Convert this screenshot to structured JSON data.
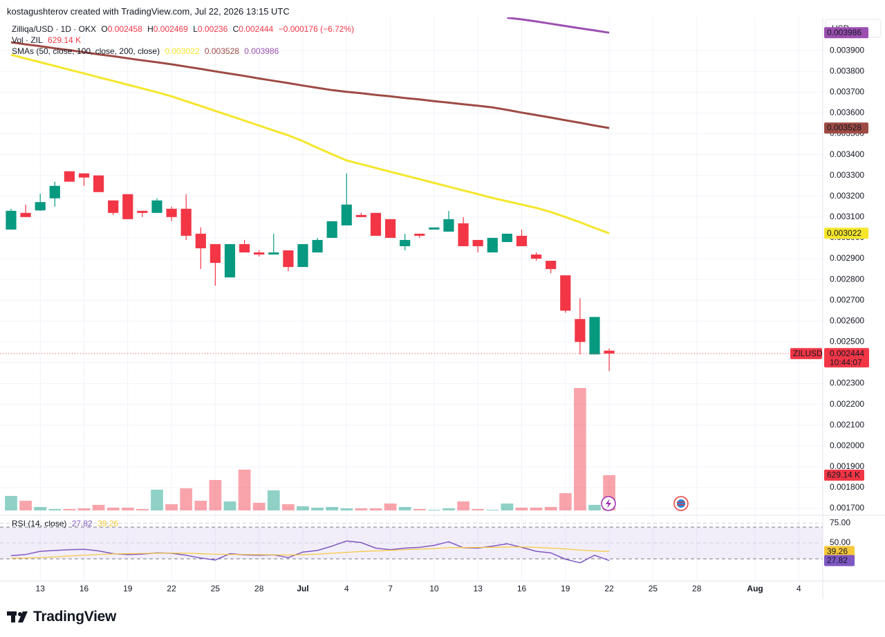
{
  "header": {
    "attribution": "kostagushterov created with TradingView.com, Jul 22, 2026 13:15 UTC"
  },
  "chart_data": {
    "type": "candlestick",
    "symbol": "Zilliqa/USD · 1D · OKX",
    "ohlc_labels": [
      "O",
      "H",
      "L",
      "C"
    ],
    "change": "−0.000176 (−6.72%)",
    "currency": "USD",
    "last_price_label": "ZILUSD",
    "countdown": "10:44:07",
    "up_color": "#089981",
    "down_color": "#f23645",
    "x": [
      "2026-06-11",
      "2026-06-12",
      "2026-06-13",
      "2026-06-14",
      "2026-06-15",
      "2026-06-16",
      "2026-06-17",
      "2026-06-18",
      "2026-06-19",
      "2026-06-20",
      "2026-06-21",
      "2026-06-22",
      "2026-06-23",
      "2026-06-24",
      "2026-06-25",
      "2026-06-26",
      "2026-06-27",
      "2026-06-28",
      "2026-06-29",
      "2026-06-30",
      "2026-07-01",
      "2026-07-02",
      "2026-07-03",
      "2026-07-04",
      "2026-07-05",
      "2026-07-06",
      "2026-07-07",
      "2026-07-08",
      "2026-07-09",
      "2026-07-10",
      "2026-07-11",
      "2026-07-12",
      "2026-07-13",
      "2026-07-14",
      "2026-07-15",
      "2026-07-16",
      "2026-07-17",
      "2026-07-18",
      "2026-07-19",
      "2026-07-20",
      "2026-07-21",
      "2026-07-22"
    ],
    "open": [
      0.00304,
      0.00312,
      0.003132,
      0.00319,
      0.00332,
      0.00331,
      0.0033,
      0.00318,
      0.00321,
      0.00313,
      0.00312,
      0.00314,
      0.00314,
      0.00302,
      0.00297,
      0.00281,
      0.00297,
      0.00293,
      0.00292,
      0.00294,
      0.00286,
      0.00293,
      0.003,
      0.00306,
      0.00311,
      0.00312,
      0.00309,
      0.00296,
      0.00302,
      0.00304,
      0.00303,
      0.00307,
      0.00299,
      0.00293,
      0.00298,
      0.00301,
      0.00292,
      0.00289,
      0.00282,
      0.00261,
      0.00244,
      0.002458
    ],
    "high": [
      0.00314,
      0.00316,
      0.003212,
      0.00327,
      0.00332,
      0.00331,
      0.0033,
      0.00318,
      0.00321,
      0.00313,
      0.00319,
      0.00315,
      0.00321,
      0.00305,
      0.00297,
      0.00297,
      0.00299,
      0.00294,
      0.00302,
      0.00294,
      0.00297,
      0.003,
      0.00308,
      0.00331,
      0.00312,
      0.00312,
      0.00309,
      0.00302,
      0.00302,
      0.00305,
      0.00313,
      0.0031,
      0.00299,
      0.003,
      0.00302,
      0.00304,
      0.00293,
      0.00289,
      0.00282,
      0.00271,
      0.00262,
      0.002469
    ],
    "low": [
      0.00304,
      0.0031,
      0.00313,
      0.00315,
      0.00327,
      0.00325,
      0.00322,
      0.00311,
      0.00309,
      0.0031,
      0.00312,
      0.00308,
      0.00299,
      0.00285,
      0.00277,
      0.00281,
      0.00293,
      0.00291,
      0.00292,
      0.00284,
      0.00286,
      0.00293,
      0.003,
      0.00306,
      0.0031,
      0.00301,
      0.003,
      0.00294,
      0.003,
      0.00304,
      0.00303,
      0.00296,
      0.00293,
      0.00293,
      0.00298,
      0.00296,
      0.00289,
      0.00283,
      0.00264,
      0.00244,
      0.00244,
      0.00236
    ],
    "close": [
      0.00313,
      0.0031,
      0.003172,
      0.00325,
      0.00327,
      0.00329,
      0.00322,
      0.00312,
      0.00309,
      0.00312,
      0.00318,
      0.0031,
      0.00301,
      0.00295,
      0.00288,
      0.00297,
      0.00293,
      0.00292,
      0.00293,
      0.00286,
      0.00297,
      0.00299,
      0.00308,
      0.00316,
      0.0031,
      0.00301,
      0.003,
      0.00299,
      0.00301,
      0.00305,
      0.00309,
      0.00296,
      0.00296,
      0.003,
      0.00302,
      0.00296,
      0.0029,
      0.00285,
      0.00265,
      0.0025,
      0.00262,
      0.002444
    ],
    "ylim": [
      0.001667,
      0.00406
    ],
    "yticks": [
      {
        "value": 0.0039,
        "label": "0.003900"
      },
      {
        "value": 0.0038,
        "label": "0.003800"
      },
      {
        "value": 0.0037,
        "label": "0.003700"
      },
      {
        "value": 0.0036,
        "label": "0.003600"
      },
      {
        "value": 0.0035,
        "label": "0.003500"
      },
      {
        "value": 0.0034,
        "label": "0.003400"
      },
      {
        "value": 0.0033,
        "label": "0.003300"
      },
      {
        "value": 0.0032,
        "label": "0.003200"
      },
      {
        "value": 0.0031,
        "label": "0.003100"
      },
      {
        "value": 0.003,
        "label": "0.003000"
      },
      {
        "value": 0.0029,
        "label": "0.002900"
      },
      {
        "value": 0.0028,
        "label": "0.002800"
      },
      {
        "value": 0.0027,
        "label": "0.002700"
      },
      {
        "value": 0.0026,
        "label": "0.002600"
      },
      {
        "value": 0.0025,
        "label": "0.002500"
      },
      {
        "value": 0.0024,
        "label": "0.002400"
      },
      {
        "value": 0.0023,
        "label": "0.002300"
      },
      {
        "value": 0.0022,
        "label": "0.002200"
      },
      {
        "value": 0.0021,
        "label": "0.002100"
      },
      {
        "value": 0.002,
        "label": "0.002000"
      },
      {
        "value": 0.0019,
        "label": "0.001900"
      },
      {
        "value": 0.0018,
        "label": "0.001800"
      },
      {
        "value": 0.0017,
        "label": "0.001700"
      }
    ],
    "xlim": [
      "2026-06-10",
      "2026-08-06"
    ],
    "xticks": [
      {
        "value": "2026-06-13",
        "label": "13"
      },
      {
        "value": "2026-06-16",
        "label": "16"
      },
      {
        "value": "2026-06-19",
        "label": "19"
      },
      {
        "value": "2026-06-22",
        "label": "22"
      },
      {
        "value": "2026-06-25",
        "label": "25"
      },
      {
        "value": "2026-06-28",
        "label": "28"
      },
      {
        "value": "2026-07-01",
        "label": "Jul"
      },
      {
        "value": "2026-07-04",
        "label": "4"
      },
      {
        "value": "2026-07-07",
        "label": "7"
      },
      {
        "value": "2026-07-10",
        "label": "10"
      },
      {
        "value": "2026-07-13",
        "label": "13"
      },
      {
        "value": "2026-07-16",
        "label": "16"
      },
      {
        "value": "2026-07-19",
        "label": "19"
      },
      {
        "value": "2026-07-22",
        "label": "22"
      },
      {
        "value": "2026-07-25",
        "label": "25"
      },
      {
        "value": "2026-07-28",
        "label": "28"
      },
      {
        "value": "2026-08-01",
        "label": "Aug"
      },
      {
        "value": "2026-08-04",
        "label": "4"
      }
    ],
    "grid": true,
    "volume": {
      "name": "Vol · ZIL",
      "values": [
        259000,
        173000,
        62000,
        25000,
        25000,
        37000,
        99000,
        49000,
        49000,
        25000,
        370000,
        111000,
        395000,
        173000,
        543000,
        160000,
        728000,
        136000,
        358000,
        111000,
        74000,
        49000,
        62000,
        37000,
        37000,
        37000,
        123000,
        62000,
        25000,
        12000,
        37000,
        160000,
        25000,
        12000,
        123000,
        49000,
        49000,
        62000,
        308000,
        2184000,
        99000,
        629140
      ],
      "value_labels": [
        null,
        null,
        null,
        null,
        null,
        null,
        null,
        null,
        null,
        null,
        null,
        null,
        null,
        null,
        null,
        null,
        null,
        null,
        null,
        null,
        null,
        null,
        null,
        null,
        null,
        null,
        null,
        null,
        null,
        null,
        null,
        null,
        null,
        null,
        null,
        null,
        null,
        null,
        null,
        null,
        null,
        "629.14 K"
      ]
    },
    "sma": {
      "name": "SMAs (50, close, 100, close, 200, close)",
      "series": [
        {
          "color": "#f5e62b",
          "tag_text": "#131722",
          "values": [
            0.00388,
            0.003862,
            0.003844,
            0.003826,
            0.003808,
            0.00379,
            0.003772,
            0.003754,
            0.003736,
            0.003718,
            0.0037,
            0.00368,
            0.003657,
            0.003634,
            0.00361,
            0.003587,
            0.003563,
            0.00354,
            0.003516,
            0.003493,
            0.003465,
            0.003433,
            0.003402,
            0.003372,
            0.003354,
            0.003336,
            0.003318,
            0.0033,
            0.003282,
            0.003264,
            0.003246,
            0.003228,
            0.00321,
            0.003192,
            0.003176,
            0.00316,
            0.003144,
            0.003124,
            0.0031,
            0.003075,
            0.003048,
            0.003022
          ]
        },
        {
          "color": "#9e4a44",
          "tag_text": "#ffffff",
          "values": [
            0.00394,
            0.00393,
            0.003921,
            0.003911,
            0.003902,
            0.003892,
            0.003882,
            0.003873,
            0.003863,
            0.003853,
            0.003844,
            0.003834,
            0.003823,
            0.003812,
            0.0038,
            0.003789,
            0.003778,
            0.003766,
            0.003755,
            0.003744,
            0.003732,
            0.003721,
            0.00371,
            0.003702,
            0.003695,
            0.003687,
            0.00368,
            0.003672,
            0.003665,
            0.003657,
            0.00365,
            0.003642,
            0.003635,
            0.003627,
            0.003615,
            0.003602,
            0.00359,
            0.003578,
            0.003565,
            0.003553,
            0.00354,
            0.003528
          ]
        },
        {
          "color": "#9c4fb0",
          "tag_text": "#ffffff",
          "values": [
            null,
            null,
            null,
            null,
            null,
            null,
            null,
            null,
            null,
            null,
            null,
            null,
            null,
            null,
            null,
            null,
            null,
            null,
            null,
            null,
            null,
            null,
            null,
            null,
            null,
            null,
            null,
            null,
            null,
            null,
            null,
            null,
            null,
            null,
            0.004058,
            0.00405,
            0.00404,
            0.004029,
            0.004018,
            0.004007,
            0.003997,
            0.003986
          ]
        }
      ]
    },
    "rsi": {
      "name": "RSI (14, close)",
      "ylim": [
        2,
        85
      ],
      "yticks": [
        {
          "value": 75,
          "label": "75.00"
        },
        {
          "value": 50,
          "label": "50.00"
        }
      ],
      "band": [
        30,
        70
      ],
      "series": [
        {
          "color": "#7e57c2",
          "values": [
            34,
            35.5,
            39.5,
            40.5,
            41.5,
            42,
            40,
            36.5,
            35.5,
            36,
            37.5,
            37,
            34.5,
            31,
            28.5,
            36.5,
            35,
            34.5,
            35,
            31.5,
            38.5,
            40.5,
            46,
            52.5,
            50.5,
            43.5,
            41.5,
            43.5,
            44.5,
            47,
            51.5,
            44,
            43.5,
            46,
            49,
            44.5,
            39.5,
            37.5,
            29.5,
            25,
            34.5,
            27.82
          ]
        },
        {
          "color": "#f7c83a",
          "values": [
            30.8,
            31,
            31.5,
            32.5,
            33.5,
            34.5,
            35.5,
            36.2,
            36.5,
            36.8,
            37,
            37.2,
            37,
            36.5,
            35.8,
            35.5,
            35.5,
            35.3,
            35,
            34.8,
            35.2,
            36,
            37,
            38.2,
            39.2,
            40,
            40.8,
            41.5,
            42.2,
            43,
            44,
            44.3,
            44.4,
            44.5,
            44.8,
            45,
            44.5,
            43.5,
            42.5,
            41,
            40,
            39.26
          ]
        }
      ]
    }
  },
  "branding": "TradingView"
}
